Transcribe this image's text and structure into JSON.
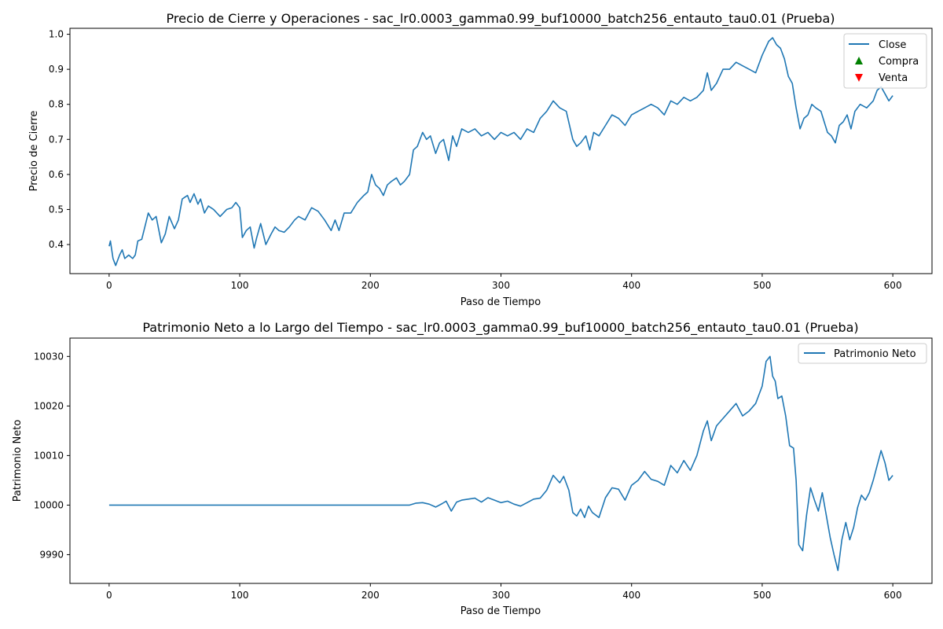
{
  "colors": {
    "line": "#1f77b4",
    "buy": "#008000",
    "sell": "#ff0000"
  },
  "chart_data": [
    {
      "type": "line",
      "title": "Precio de Cierre y Operaciones - sac_lr0.0003_gamma0.99_buf10000_batch256_entauto_tau0.01 (Prueba)",
      "xlabel": "Paso de Tiempo",
      "ylabel": "Precio de Cierre",
      "xlim": [
        -30,
        630
      ],
      "ylim": [
        0.317,
        1.017
      ],
      "xticks": [
        0,
        100,
        200,
        300,
        400,
        500,
        600
      ],
      "yticks": [
        0.4,
        0.5,
        0.6,
        0.7,
        0.8,
        0.9,
        1.0
      ],
      "ytick_labels": [
        "0.4",
        "0.5",
        "0.6",
        "0.7",
        "0.8",
        "0.9",
        "1.0"
      ],
      "grid": false,
      "legend_position": "top-right",
      "legend": [
        {
          "name": "Close",
          "marker": "line"
        },
        {
          "name": "Compra",
          "marker": "triangle-up"
        },
        {
          "name": "Venta",
          "marker": "triangle-down"
        }
      ],
      "series": [
        {
          "name": "Close",
          "x": [
            0,
            1,
            3,
            5,
            8,
            10,
            12,
            15,
            18,
            20,
            22,
            25,
            28,
            30,
            33,
            36,
            40,
            43,
            46,
            50,
            53,
            56,
            60,
            62,
            65,
            68,
            70,
            73,
            76,
            80,
            85,
            90,
            94,
            97,
            100,
            102,
            105,
            108,
            111,
            113,
            116,
            120,
            124,
            127,
            130,
            134,
            138,
            142,
            145,
            150,
            155,
            160,
            165,
            170,
            173,
            176,
            180,
            185,
            190,
            195,
            198,
            201,
            204,
            207,
            210,
            213,
            216,
            220,
            223,
            226,
            230,
            233,
            236,
            240,
            243,
            246,
            250,
            253,
            256,
            260,
            263,
            266,
            270,
            275,
            280,
            285,
            290,
            295,
            300,
            305,
            310,
            315,
            320,
            325,
            330,
            335,
            340,
            345,
            350,
            355,
            358,
            361,
            365,
            368,
            371,
            375,
            380,
            385,
            390,
            395,
            400,
            405,
            410,
            415,
            420,
            425,
            430,
            435,
            440,
            445,
            450,
            455,
            458,
            461,
            465,
            470,
            475,
            480,
            485,
            490,
            495,
            500,
            505,
            508,
            511,
            514,
            517,
            520,
            523,
            526,
            529,
            532,
            535,
            538,
            541,
            545,
            550,
            553,
            556,
            559,
            562,
            565,
            568,
            571,
            575,
            580,
            585,
            588,
            591,
            594,
            597,
            600
          ],
          "values": [
            0.395,
            0.41,
            0.36,
            0.34,
            0.37,
            0.385,
            0.36,
            0.37,
            0.36,
            0.37,
            0.41,
            0.415,
            0.46,
            0.49,
            0.47,
            0.48,
            0.405,
            0.43,
            0.48,
            0.445,
            0.47,
            0.53,
            0.54,
            0.52,
            0.545,
            0.515,
            0.53,
            0.49,
            0.51,
            0.5,
            0.48,
            0.5,
            0.505,
            0.52,
            0.505,
            0.42,
            0.44,
            0.45,
            0.39,
            0.42,
            0.46,
            0.4,
            0.43,
            0.45,
            0.44,
            0.435,
            0.45,
            0.47,
            0.48,
            0.47,
            0.505,
            0.495,
            0.47,
            0.44,
            0.47,
            0.44,
            0.49,
            0.49,
            0.52,
            0.54,
            0.55,
            0.6,
            0.57,
            0.56,
            0.54,
            0.57,
            0.58,
            0.59,
            0.57,
            0.58,
            0.6,
            0.67,
            0.68,
            0.72,
            0.7,
            0.71,
            0.66,
            0.69,
            0.7,
            0.64,
            0.71,
            0.68,
            0.73,
            0.72,
            0.73,
            0.71,
            0.72,
            0.7,
            0.72,
            0.71,
            0.72,
            0.7,
            0.73,
            0.72,
            0.76,
            0.78,
            0.81,
            0.79,
            0.78,
            0.7,
            0.68,
            0.69,
            0.71,
            0.67,
            0.72,
            0.71,
            0.74,
            0.77,
            0.76,
            0.74,
            0.77,
            0.78,
            0.79,
            0.8,
            0.79,
            0.77,
            0.81,
            0.8,
            0.82,
            0.81,
            0.82,
            0.84,
            0.89,
            0.84,
            0.86,
            0.9,
            0.9,
            0.92,
            0.91,
            0.9,
            0.89,
            0.94,
            0.98,
            0.99,
            0.97,
            0.96,
            0.93,
            0.88,
            0.86,
            0.79,
            0.73,
            0.76,
            0.77,
            0.8,
            0.79,
            0.78,
            0.72,
            0.71,
            0.69,
            0.74,
            0.75,
            0.77,
            0.73,
            0.78,
            0.8,
            0.79,
            0.81,
            0.84,
            0.85,
            0.83,
            0.81,
            0.825
          ]
        }
      ]
    },
    {
      "type": "line",
      "title": "Patrimonio Neto a lo Largo del Tiempo - sac_lr0.0003_gamma0.99_buf10000_batch256_entauto_tau0.01 (Prueba)",
      "xlabel": "Paso de Tiempo",
      "ylabel": "Patrimonio Neto",
      "xlim": [
        -30,
        630
      ],
      "ylim": [
        9984.2,
        10033.7
      ],
      "xticks": [
        0,
        100,
        200,
        300,
        400,
        500,
        600
      ],
      "yticks": [
        9990,
        10000,
        10010,
        10020,
        10030
      ],
      "ytick_labels": [
        "9990",
        "10000",
        "10010",
        "10020",
        "10030"
      ],
      "grid": false,
      "legend_position": "top-right",
      "legend": [
        {
          "name": "Patrimonio Neto",
          "marker": "line"
        }
      ],
      "series": [
        {
          "name": "Patrimonio Neto",
          "x": [
            0,
            50,
            100,
            150,
            200,
            230,
            235,
            240,
            245,
            250,
            255,
            258,
            262,
            266,
            270,
            275,
            280,
            285,
            290,
            295,
            300,
            305,
            310,
            315,
            320,
            325,
            330,
            335,
            340,
            345,
            348,
            352,
            355,
            358,
            361,
            364,
            367,
            370,
            375,
            380,
            385,
            390,
            395,
            400,
            405,
            410,
            415,
            420,
            425,
            430,
            435,
            440,
            445,
            450,
            455,
            458,
            461,
            465,
            470,
            475,
            480,
            485,
            490,
            495,
            500,
            503,
            506,
            508,
            510,
            512,
            515,
            518,
            521,
            524,
            526,
            528,
            531,
            534,
            537,
            540,
            543,
            546,
            549,
            552,
            555,
            558,
            561,
            564,
            567,
            570,
            573,
            576,
            579,
            582,
            585,
            588,
            591,
            594,
            597,
            600
          ],
          "values": [
            10000,
            10000,
            10000,
            10000,
            10000,
            10000,
            10000.4,
            10000.5,
            10000.2,
            9999.6,
            10000.3,
            10000.8,
            9998.8,
            10000.6,
            10001,
            10001.2,
            10001.4,
            10000.6,
            10001.5,
            10001,
            10000.5,
            10000.8,
            10000.2,
            9999.8,
            10000.5,
            10001.2,
            10001.4,
            10003,
            10006,
            10004.5,
            10005.8,
            10003,
            9998.5,
            9997.8,
            9999.2,
            9997.5,
            9999.8,
            9998.5,
            9997.5,
            10001.5,
            10003.5,
            10003.2,
            10001,
            10004,
            10005,
            10006.8,
            10005.2,
            10004.8,
            10004,
            10008,
            10006.5,
            10009,
            10007,
            10010,
            10015,
            10017,
            10013,
            10016,
            10017.5,
            10019,
            10020.5,
            10018,
            10019,
            10020.5,
            10024,
            10029,
            10030,
            10026,
            10025,
            10021.5,
            10022,
            10018,
            10012,
            10011.5,
            10005,
            9992,
            9990.8,
            9998,
            10003.5,
            10001,
            9998.8,
            10002.5,
            9998,
            9993.5,
            9990,
            9986.8,
            9993,
            9996.5,
            9993,
            9995.5,
            9999.5,
            10002,
            10001,
            10002.5,
            10005,
            10008,
            10011,
            10008.5,
            10005,
            10006
          ]
        }
      ]
    }
  ]
}
